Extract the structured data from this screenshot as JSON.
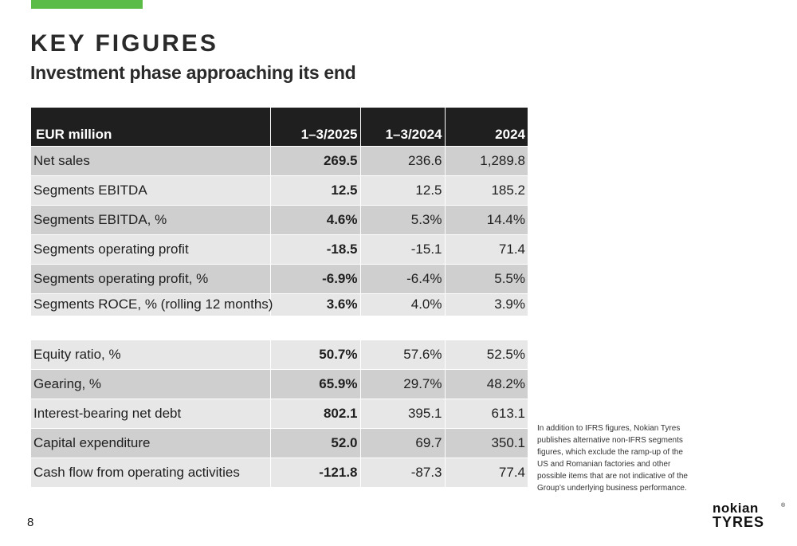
{
  "colors": {
    "accent": "#5bbd48",
    "header_bg": "#1f1f1f",
    "row_dark": "#cfcfcf",
    "row_light": "#e7e7e7"
  },
  "header": {
    "title": "KEY FIGURES",
    "subtitle": "Investment phase approaching its end"
  },
  "table": {
    "columns": [
      "EUR million",
      "1–3/2025",
      "1–3/2024",
      "2024"
    ],
    "rows_top": [
      {
        "label": "Net sales",
        "q1_2025": "269.5",
        "q1_2024": "236.6",
        "y2024": "1,289.8"
      },
      {
        "label": "Segments EBITDA",
        "q1_2025": "12.5",
        "q1_2024": "12.5",
        "y2024": "185.2"
      },
      {
        "label": "Segments EBITDA, %",
        "q1_2025": "4.6%",
        "q1_2024": "5.3%",
        "y2024": "14.4%"
      },
      {
        "label": "Segments operating profit",
        "q1_2025": "-18.5",
        "q1_2024": "-15.1",
        "y2024": "71.4"
      },
      {
        "label": "Segments operating profit, %",
        "q1_2025": "-6.9%",
        "q1_2024": "-6.4%",
        "y2024": "5.5%"
      },
      {
        "label": "Segments ROCE, % (rolling 12 months)",
        "q1_2025": "3.6%",
        "q1_2024": "4.0%",
        "y2024": "3.9%"
      }
    ],
    "rows_bottom": [
      {
        "label": "Equity ratio, %",
        "q1_2025": "50.7%",
        "q1_2024": "57.6%",
        "y2024": "52.5%"
      },
      {
        "label": "Gearing, %",
        "q1_2025": "65.9%",
        "q1_2024": "29.7%",
        "y2024": "48.2%"
      },
      {
        "label": "Interest-bearing net debt",
        "q1_2025": "802.1",
        "q1_2024": "395.1",
        "y2024": "613.1"
      },
      {
        "label": "Capital expenditure",
        "q1_2025": "52.0",
        "q1_2024": "69.7",
        "y2024": "350.1"
      },
      {
        "label": "Cash flow from operating activities",
        "q1_2025": "-121.8",
        "q1_2024": "-87.3",
        "y2024": "77.4"
      }
    ]
  },
  "footnote": "In addition to IFRS figures, Nokian Tyres publishes alternative non-IFRS segments figures, which exclude the ramp-up of the US and Romanian factories and other possible items that are not indicative of the Group’s underlying business performance.",
  "page_number": "8",
  "logo": {
    "line1": "nokian",
    "line2": "TYRES",
    "mark": "®"
  }
}
